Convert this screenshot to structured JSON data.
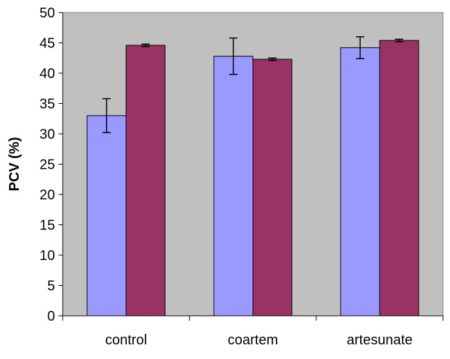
{
  "chart_data": {
    "type": "bar",
    "title": "",
    "xlabel": "",
    "ylabel": "PCV (%)",
    "ylim": [
      0,
      50
    ],
    "yticks": [
      0,
      5,
      10,
      15,
      20,
      25,
      30,
      35,
      40,
      45,
      50
    ],
    "ytick_labels": [
      "0",
      "5",
      "10",
      "15",
      "20",
      "25",
      "30",
      "35",
      "40",
      "45",
      "50"
    ],
    "categories": [
      "control",
      "coartem",
      "artesunate"
    ],
    "grid": false,
    "legend": "none",
    "plot_background": "#c0c0c0",
    "series": [
      {
        "color": "#9999ff",
        "values": [
          33.0,
          42.8,
          44.2
        ],
        "errors": [
          2.8,
          3.0,
          1.8
        ]
      },
      {
        "color": "#993366",
        "values": [
          44.6,
          42.3,
          45.4
        ],
        "errors": [
          0.2,
          0.2,
          0.2
        ]
      }
    ]
  }
}
